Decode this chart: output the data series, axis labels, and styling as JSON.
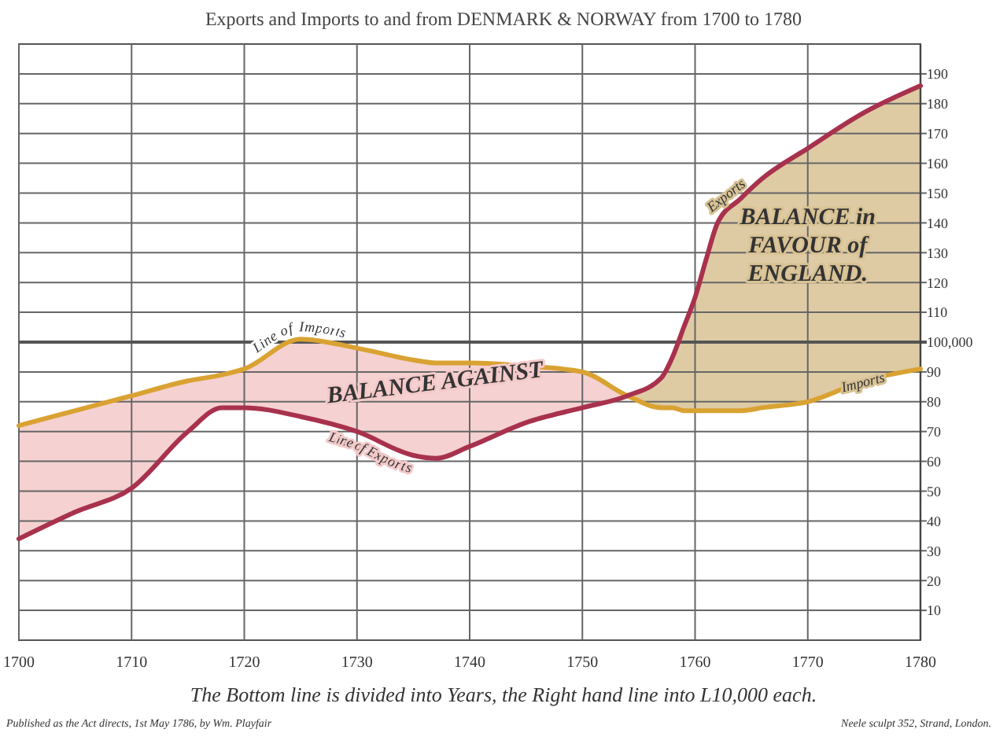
{
  "chart_data": {
    "type": "line",
    "title": "Exports and Imports to and from DENMARK & NORWAY from 1700 to 1780",
    "x": [
      1700,
      1705,
      1710,
      1715,
      1718,
      1720,
      1725,
      1730,
      1735,
      1737,
      1740,
      1745,
      1750,
      1754,
      1757,
      1758,
      1759,
      1760,
      1761,
      1762,
      1764,
      1766,
      1770,
      1775,
      1780
    ],
    "series": [
      {
        "name": "Line of Imports",
        "color": "#d9a232",
        "values": [
          72,
          77,
          82,
          87,
          89,
          91,
          101,
          98,
          94,
          93,
          93,
          92,
          90,
          82,
          78,
          78,
          77,
          77,
          77,
          77,
          77,
          78,
          80,
          87,
          91
        ]
      },
      {
        "name": "Line of Exports",
        "color": "#a8324e",
        "values": [
          34,
          43,
          51,
          70,
          78,
          78,
          75,
          70,
          62,
          61,
          65,
          73,
          78,
          82,
          88,
          95,
          105,
          115,
          128,
          140,
          148,
          155,
          165,
          177,
          186
        ]
      }
    ],
    "xlim": [
      1700,
      1780
    ],
    "xticks": [
      1700,
      1710,
      1720,
      1730,
      1740,
      1750,
      1760,
      1770,
      1780
    ],
    "ylim": [
      0,
      200
    ],
    "yticks": [
      10,
      20,
      30,
      40,
      50,
      60,
      70,
      80,
      90,
      110,
      120,
      130,
      140,
      150,
      160,
      170,
      180,
      190
    ],
    "ref_lines": [
      {
        "axis": "y",
        "value": 100,
        "label": "100,000"
      }
    ],
    "grid": true,
    "annotations": [
      "BALANCE AGAINST",
      "BALANCE in\nFAVOUR of\nENGLAND.",
      {
        "text": "Exports",
        "x": 1763,
        "y": 148
      },
      {
        "text": "Imports",
        "x": 1775,
        "y": 85
      },
      "The Bottom line is divided into Years, the Right hand line into L10,000 each.",
      "Published as the Act directs, 1st May 1786, by Wm. Playfair",
      "Neele sculpt 352, Strand, London."
    ]
  }
}
